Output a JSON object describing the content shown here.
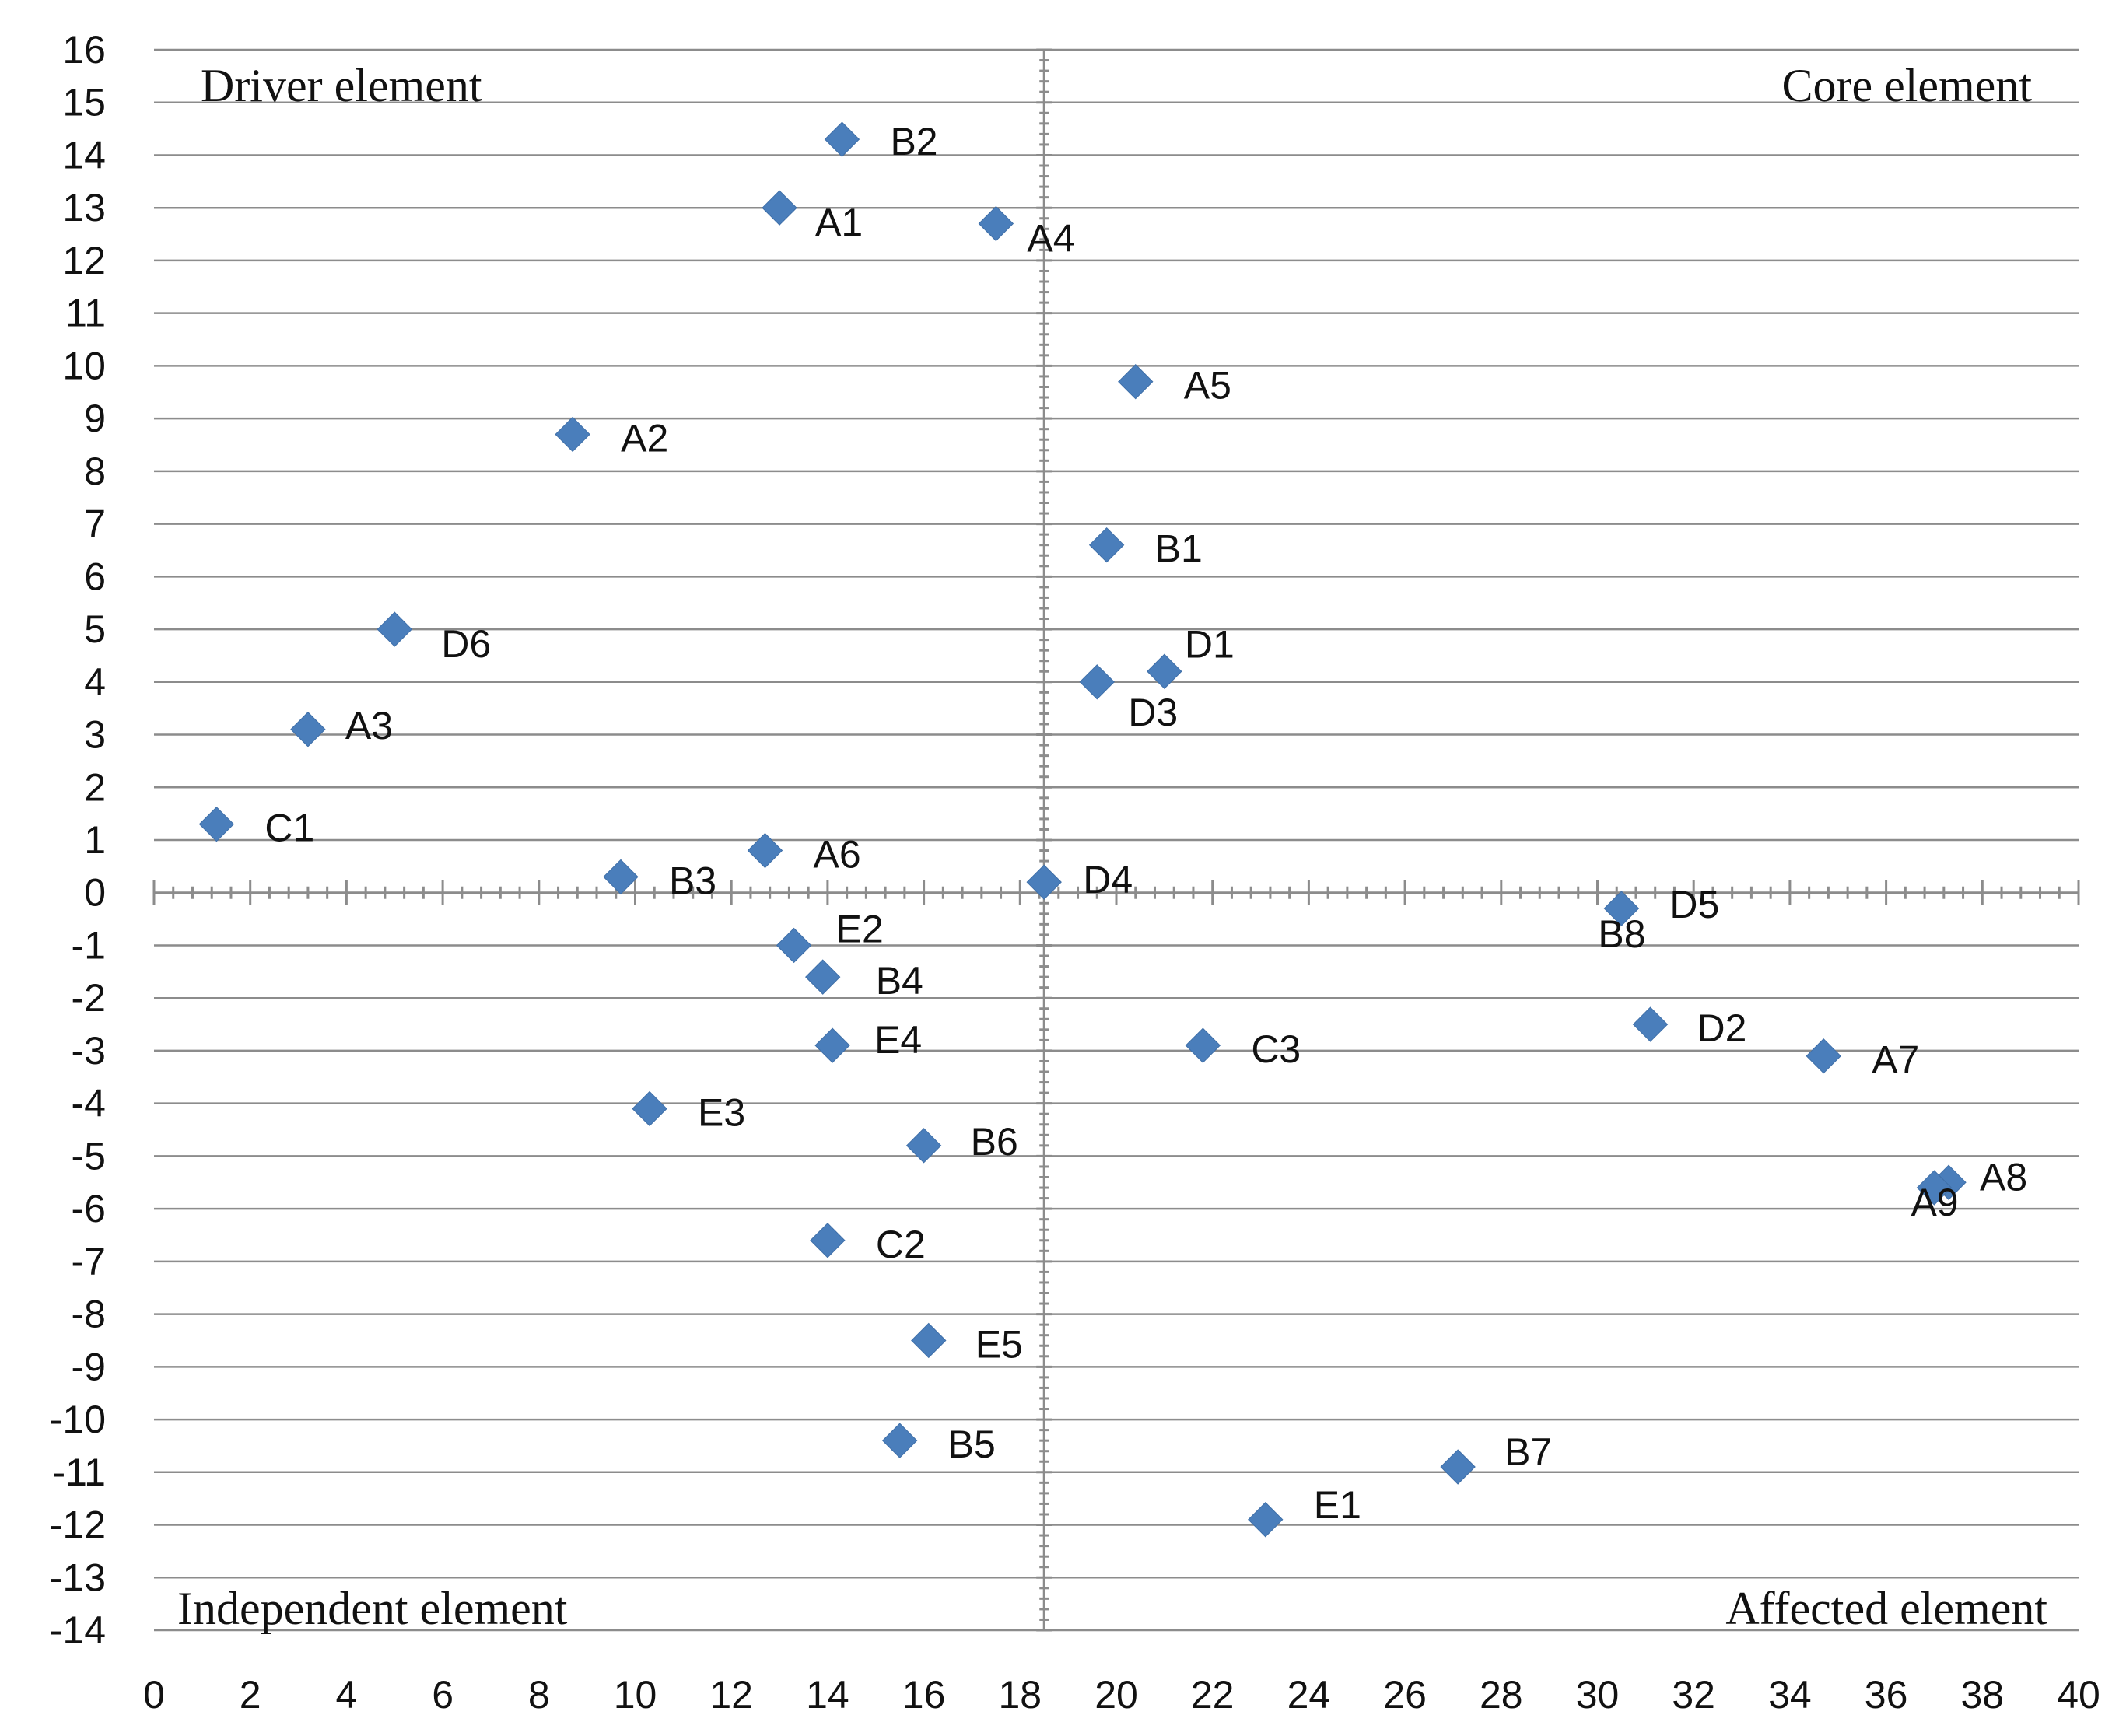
{
  "chart_data": {
    "type": "scatter",
    "title": "",
    "xlabel": "",
    "ylabel": "",
    "xlim": [
      0,
      40
    ],
    "ylim": [
      -14,
      16
    ],
    "x_ticks": [
      0,
      2,
      4,
      6,
      8,
      10,
      12,
      14,
      16,
      18,
      20,
      22,
      24,
      26,
      28,
      30,
      32,
      34,
      36,
      38,
      40
    ],
    "y_ticks": [
      -14,
      -13,
      -12,
      -11,
      -10,
      -9,
      -8,
      -7,
      -6,
      -5,
      -4,
      -3,
      -2,
      -1,
      0,
      1,
      2,
      3,
      4,
      5,
      6,
      7,
      8,
      9,
      10,
      11,
      12,
      13,
      14,
      15,
      16
    ],
    "grid": "horizontal",
    "divider_x": 18.5,
    "quadrant_labels": {
      "top_left": "Driver element",
      "top_right": "Core element",
      "bottom_left": "Independent element",
      "bottom_right": "Affected element"
    },
    "points": [
      {
        "label": "B2",
        "x": 14.3,
        "y": 14.3
      },
      {
        "label": "A1",
        "x": 13.0,
        "y": 13.0
      },
      {
        "label": "A4",
        "x": 17.5,
        "y": 12.7
      },
      {
        "label": "A5",
        "x": 20.4,
        "y": 9.7
      },
      {
        "label": "A2",
        "x": 8.7,
        "y": 8.7
      },
      {
        "label": "B1",
        "x": 19.8,
        "y": 6.6
      },
      {
        "label": "D6",
        "x": 5.0,
        "y": 5.0
      },
      {
        "label": "D1",
        "x": 21.0,
        "y": 4.2
      },
      {
        "label": "D3",
        "x": 19.6,
        "y": 4.0
      },
      {
        "label": "A3",
        "x": 3.2,
        "y": 3.1
      },
      {
        "label": "C1",
        "x": 1.3,
        "y": 1.3
      },
      {
        "label": "A6",
        "x": 12.7,
        "y": 0.8
      },
      {
        "label": "B3",
        "x": 9.7,
        "y": 0.3
      },
      {
        "label": "D4",
        "x": 18.5,
        "y": 0.2
      },
      {
        "label": "D5",
        "x": 30.5,
        "y": -0.3
      },
      {
        "label": "B8",
        "x": 30.5,
        "y": -0.3
      },
      {
        "label": "E2",
        "x": 13.3,
        "y": -1.0
      },
      {
        "label": "B4",
        "x": 13.9,
        "y": -1.6
      },
      {
        "label": "D2",
        "x": 31.1,
        "y": -2.5
      },
      {
        "label": "E4",
        "x": 14.1,
        "y": -2.9
      },
      {
        "label": "C3",
        "x": 21.8,
        "y": -2.9
      },
      {
        "label": "A7",
        "x": 34.7,
        "y": -3.1
      },
      {
        "label": "E3",
        "x": 10.3,
        "y": -4.1
      },
      {
        "label": "B6",
        "x": 16.0,
        "y": -4.8
      },
      {
        "label": "A8",
        "x": 37.3,
        "y": -5.5
      },
      {
        "label": "A9",
        "x": 37.0,
        "y": -5.6
      },
      {
        "label": "C2",
        "x": 14.0,
        "y": -6.6
      },
      {
        "label": "E5",
        "x": 16.1,
        "y": -8.5
      },
      {
        "label": "B5",
        "x": 15.5,
        "y": -10.4
      },
      {
        "label": "B7",
        "x": 27.1,
        "y": -10.9
      },
      {
        "label": "E1",
        "x": 23.1,
        "y": -11.9
      }
    ]
  }
}
